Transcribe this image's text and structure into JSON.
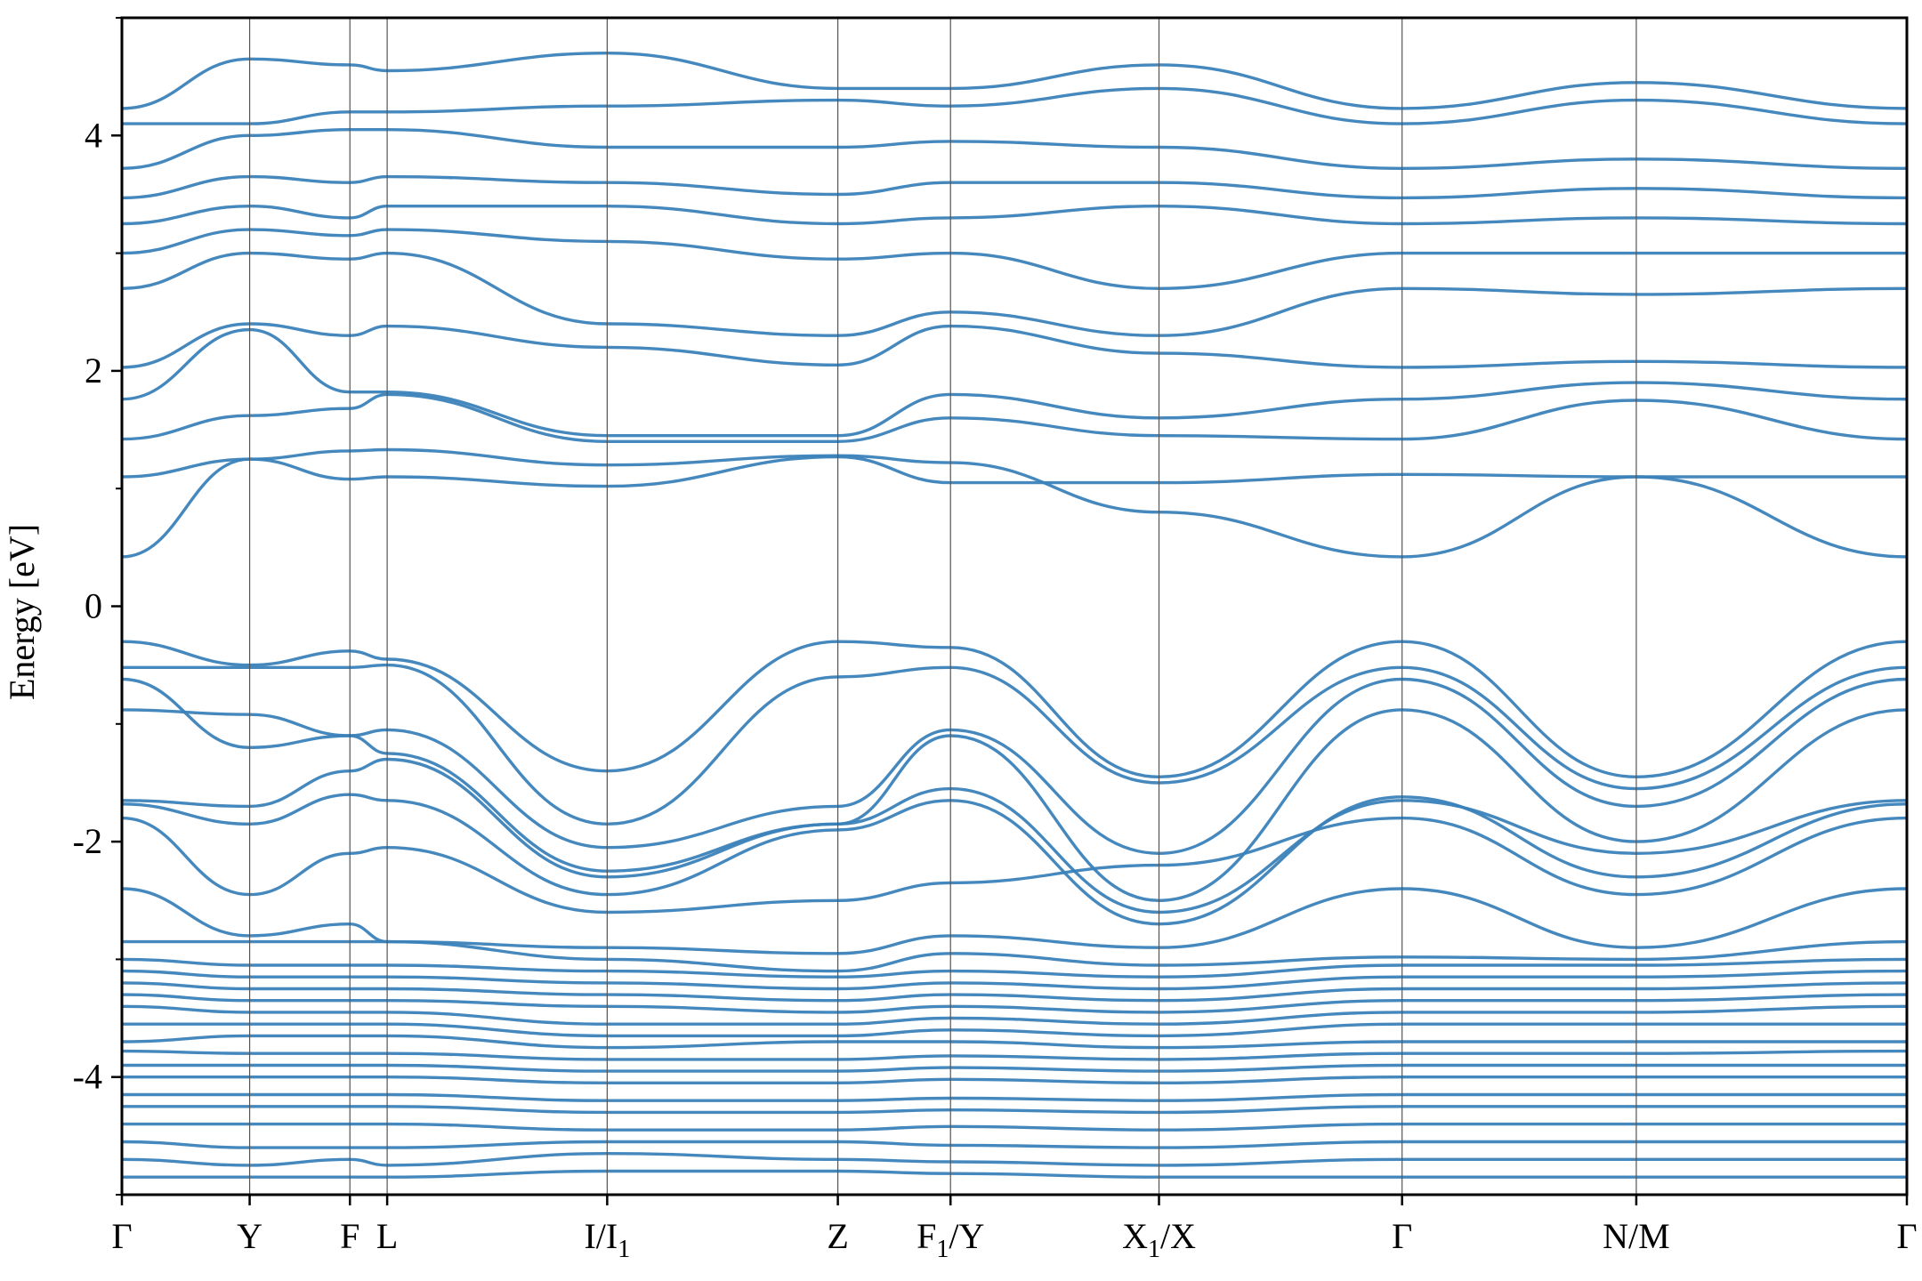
{
  "chart_data": {
    "type": "line",
    "title": "",
    "xlabel": "",
    "ylabel": "Energy [eV]",
    "ylim": [
      -5,
      5
    ],
    "y_ticks": [
      {
        "value": -4,
        "label": "-4"
      },
      {
        "value": -2,
        "label": "-2"
      },
      {
        "value": 0,
        "label": "0"
      },
      {
        "value": 2,
        "label": "2"
      },
      {
        "value": 4,
        "label": "4"
      }
    ],
    "y_minor_ticks": [
      -5,
      -3,
      -1,
      1,
      3,
      5
    ],
    "grid": false,
    "legend": "none",
    "line_color": "#3b82b9",
    "kpath_segments": [
      {
        "from": "Γ",
        "to": "Y",
        "length": 1.44
      },
      {
        "from": "Y",
        "to": "F",
        "length": 1.13
      },
      {
        "from": "F",
        "to": "L",
        "length": 0.42
      },
      {
        "from": "L",
        "to": "I",
        "length": 2.48
      },
      {
        "from": "I₁",
        "to": "Z",
        "length": 2.6
      },
      {
        "from": "Z",
        "to": "F₁",
        "length": 1.27
      },
      {
        "from": "Y",
        "to": "X₁",
        "length": 2.35
      },
      {
        "from": "X",
        "to": "Γ",
        "length": 2.74
      },
      {
        "from": "Γ",
        "to": "N",
        "length": 2.64
      },
      {
        "from": "M",
        "to": "Γ",
        "length": 3.05
      }
    ],
    "x_ticks": [
      {
        "label": "Γ",
        "sub": ""
      },
      {
        "label": "Y",
        "sub": ""
      },
      {
        "label": "F",
        "sub": ""
      },
      {
        "label": "L",
        "sub": ""
      },
      {
        "label": "I/I",
        "sub": "1",
        "post": ""
      },
      {
        "label": "Z",
        "sub": ""
      },
      {
        "label": "F",
        "sub": "1",
        "post": "/Y"
      },
      {
        "label": "X",
        "sub": "1",
        "post": "/X"
      },
      {
        "label": "Γ",
        "sub": ""
      },
      {
        "label": "N/M",
        "sub": ""
      },
      {
        "label": "Γ",
        "sub": ""
      }
    ],
    "bands_summary": {
      "valence_band_maximum": {
        "k": "Γ",
        "energy": -0.3
      },
      "conduction_band_minimum": {
        "k": "Γ",
        "energy": 0.42
      },
      "band_gap": 0.72,
      "deep_valence_manifold_range": [
        -5.0,
        -2.8
      ],
      "upper_valence_range": [
        -2.9,
        -0.3
      ],
      "conduction_range": [
        0.42,
        5.0
      ]
    },
    "bands": [
      {
        "name": "cb1",
        "values": [
          0.42,
          1.25,
          1.32,
          1.33,
          1.2,
          1.28,
          1.22,
          0.8,
          0.42,
          1.1,
          0.42
        ]
      },
      {
        "name": "cb2",
        "values": [
          1.1,
          1.25,
          1.08,
          1.1,
          1.02,
          1.27,
          1.05,
          1.05,
          1.12,
          1.1,
          1.1
        ]
      },
      {
        "name": "cb3",
        "values": [
          1.42,
          1.62,
          1.68,
          1.8,
          1.4,
          1.4,
          1.6,
          1.45,
          1.42,
          1.75,
          1.42
        ]
      },
      {
        "name": "cb4",
        "values": [
          1.76,
          2.35,
          1.82,
          1.82,
          1.45,
          1.45,
          1.8,
          1.6,
          1.76,
          1.9,
          1.76
        ]
      },
      {
        "name": "cb5",
        "values": [
          2.03,
          2.4,
          2.3,
          2.38,
          2.2,
          2.05,
          2.38,
          2.15,
          2.03,
          2.08,
          2.03
        ]
      },
      {
        "name": "cb6",
        "values": [
          2.7,
          3.0,
          2.95,
          3.0,
          2.4,
          2.3,
          2.5,
          2.3,
          2.7,
          2.65,
          2.7
        ]
      },
      {
        "name": "cb7",
        "values": [
          3.0,
          3.2,
          3.15,
          3.2,
          3.1,
          2.95,
          3.0,
          2.7,
          3.0,
          3.0,
          3.0
        ]
      },
      {
        "name": "cb8",
        "values": [
          3.25,
          3.4,
          3.3,
          3.4,
          3.4,
          3.25,
          3.3,
          3.4,
          3.25,
          3.3,
          3.25
        ]
      },
      {
        "name": "cb9",
        "values": [
          3.47,
          3.65,
          3.6,
          3.65,
          3.6,
          3.5,
          3.6,
          3.6,
          3.47,
          3.55,
          3.47
        ]
      },
      {
        "name": "cb10",
        "values": [
          3.72,
          4.0,
          4.05,
          4.05,
          3.9,
          3.9,
          3.95,
          3.9,
          3.72,
          3.8,
          3.72
        ]
      },
      {
        "name": "cb11",
        "values": [
          4.1,
          4.1,
          4.2,
          4.2,
          4.25,
          4.3,
          4.25,
          4.4,
          4.1,
          4.3,
          4.1
        ]
      },
      {
        "name": "cb12",
        "values": [
          4.23,
          4.65,
          4.6,
          4.55,
          4.7,
          4.4,
          4.4,
          4.6,
          4.23,
          4.45,
          4.23
        ]
      },
      {
        "name": "vb1",
        "values": [
          -0.3,
          -0.5,
          -0.38,
          -0.45,
          -1.4,
          -0.3,
          -0.35,
          -1.45,
          -0.3,
          -1.45,
          -0.3
        ]
      },
      {
        "name": "vb2",
        "values": [
          -0.52,
          -0.52,
          -0.52,
          -0.5,
          -1.85,
          -0.6,
          -0.52,
          -1.5,
          -0.52,
          -1.55,
          -0.52
        ]
      },
      {
        "name": "vb3",
        "values": [
          -0.62,
          -1.2,
          -1.1,
          -1.05,
          -2.05,
          -1.7,
          -1.05,
          -2.1,
          -0.62,
          -1.7,
          -0.62
        ]
      },
      {
        "name": "vb4",
        "values": [
          -0.88,
          -0.92,
          -1.1,
          -1.25,
          -2.25,
          -1.85,
          -1.1,
          -2.5,
          -0.88,
          -2.0,
          -0.88
        ]
      },
      {
        "name": "vb5",
        "values": [
          -1.65,
          -1.7,
          -1.4,
          -1.3,
          -2.3,
          -1.85,
          -1.55,
          -2.6,
          -1.65,
          -2.1,
          -1.65
        ]
      },
      {
        "name": "vb6",
        "values": [
          -1.68,
          -1.85,
          -1.6,
          -1.65,
          -2.45,
          -1.9,
          -1.65,
          -2.7,
          -1.62,
          -2.3,
          -1.68
        ]
      },
      {
        "name": "vb7",
        "values": [
          -1.8,
          -2.45,
          -2.1,
          -2.05,
          -2.6,
          -2.5,
          -2.35,
          -2.2,
          -1.8,
          -2.45,
          -1.8
        ]
      },
      {
        "name": "vb8",
        "values": [
          -2.4,
          -2.8,
          -2.7,
          -2.85,
          -2.9,
          -2.95,
          -2.8,
          -2.9,
          -2.4,
          -2.9,
          -2.4
        ]
      },
      {
        "name": "vb9",
        "values": [
          -2.85,
          -2.85,
          -2.85,
          -2.85,
          -3.0,
          -3.1,
          -2.95,
          -3.05,
          -2.98,
          -3.0,
          -2.85
        ]
      },
      {
        "name": "vb10",
        "values": [
          -3.0,
          -3.05,
          -3.05,
          -3.05,
          -3.1,
          -3.15,
          -3.1,
          -3.15,
          -3.05,
          -3.05,
          -3.0
        ]
      },
      {
        "name": "vb11",
        "values": [
          -3.1,
          -3.15,
          -3.15,
          -3.15,
          -3.2,
          -3.25,
          -3.2,
          -3.25,
          -3.15,
          -3.15,
          -3.1
        ]
      },
      {
        "name": "vb12",
        "values": [
          -3.2,
          -3.25,
          -3.25,
          -3.25,
          -3.3,
          -3.35,
          -3.3,
          -3.35,
          -3.25,
          -3.25,
          -3.2
        ]
      },
      {
        "name": "vb13",
        "values": [
          -3.3,
          -3.35,
          -3.35,
          -3.35,
          -3.4,
          -3.45,
          -3.4,
          -3.45,
          -3.35,
          -3.35,
          -3.3
        ]
      },
      {
        "name": "vb14",
        "values": [
          -3.4,
          -3.45,
          -3.45,
          -3.45,
          -3.55,
          -3.55,
          -3.5,
          -3.55,
          -3.45,
          -3.45,
          -3.4
        ]
      },
      {
        "name": "vb15",
        "values": [
          -3.55,
          -3.55,
          -3.55,
          -3.55,
          -3.65,
          -3.65,
          -3.6,
          -3.65,
          -3.55,
          -3.55,
          -3.55
        ]
      },
      {
        "name": "vb16",
        "values": [
          -3.7,
          -3.65,
          -3.65,
          -3.65,
          -3.75,
          -3.7,
          -3.7,
          -3.75,
          -3.7,
          -3.7,
          -3.7
        ]
      },
      {
        "name": "vb17",
        "values": [
          -3.78,
          -3.8,
          -3.8,
          -3.8,
          -3.85,
          -3.85,
          -3.82,
          -3.85,
          -3.8,
          -3.8,
          -3.78
        ]
      },
      {
        "name": "vb18",
        "values": [
          -3.9,
          -3.9,
          -3.9,
          -3.9,
          -3.95,
          -3.95,
          -3.92,
          -3.95,
          -3.9,
          -3.9,
          -3.9
        ]
      },
      {
        "name": "vb19",
        "values": [
          -4.0,
          -4.0,
          -4.0,
          -4.0,
          -4.05,
          -4.05,
          -4.02,
          -4.05,
          -4.0,
          -4.0,
          -4.0
        ]
      },
      {
        "name": "vb20",
        "values": [
          -4.15,
          -4.15,
          -4.15,
          -4.15,
          -4.2,
          -4.2,
          -4.18,
          -4.2,
          -4.15,
          -4.15,
          -4.15
        ]
      },
      {
        "name": "vb21",
        "values": [
          -4.25,
          -4.25,
          -4.25,
          -4.25,
          -4.3,
          -4.3,
          -4.28,
          -4.3,
          -4.25,
          -4.25,
          -4.25
        ]
      },
      {
        "name": "vb22",
        "values": [
          -4.4,
          -4.4,
          -4.4,
          -4.4,
          -4.45,
          -4.45,
          -4.42,
          -4.45,
          -4.4,
          -4.4,
          -4.4
        ]
      },
      {
        "name": "vb23",
        "values": [
          -4.55,
          -4.6,
          -4.6,
          -4.6,
          -4.55,
          -4.55,
          -4.58,
          -4.6,
          -4.55,
          -4.55,
          -4.55
        ]
      },
      {
        "name": "vb24",
        "values": [
          -4.7,
          -4.75,
          -4.7,
          -4.75,
          -4.65,
          -4.7,
          -4.72,
          -4.75,
          -4.7,
          -4.7,
          -4.7
        ]
      },
      {
        "name": "vb25",
        "values": [
          -4.85,
          -4.85,
          -4.85,
          -4.85,
          -4.8,
          -4.8,
          -4.82,
          -4.85,
          -4.85,
          -4.85,
          -4.85
        ]
      }
    ]
  }
}
